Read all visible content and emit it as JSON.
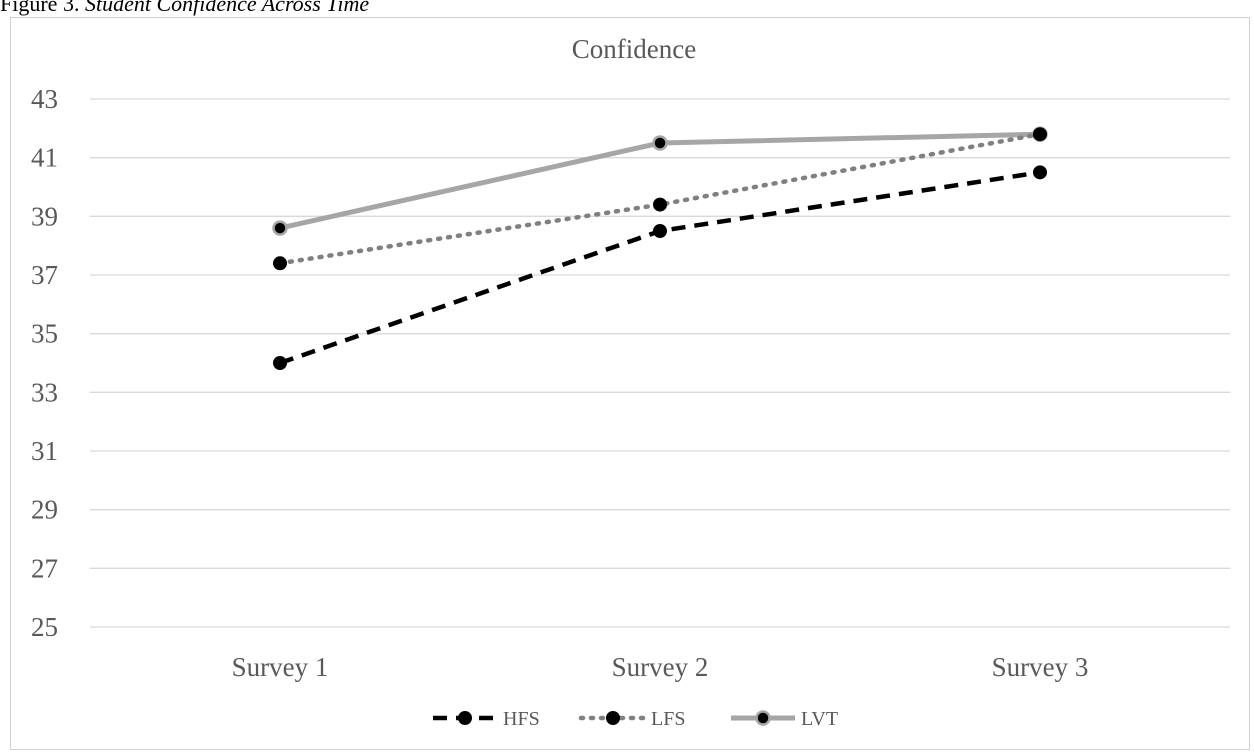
{
  "caption": {
    "prefix": "Figure 3.",
    "title": "Student Confidence Across Time"
  },
  "chart_data": {
    "type": "line",
    "title": "Confidence",
    "xlabel": "",
    "ylabel": "",
    "categories": [
      "Survey 1",
      "Survey 2",
      "Survey 3"
    ],
    "ylim": [
      25,
      43
    ],
    "yticks": [
      25,
      27,
      29,
      31,
      33,
      35,
      37,
      39,
      41,
      43
    ],
    "grid": true,
    "legend_position": "bottom",
    "series": [
      {
        "name": "HFS",
        "values": [
          34.0,
          38.5,
          40.5
        ],
        "color": "#000000",
        "style": "dashed"
      },
      {
        "name": "LFS",
        "values": [
          37.4,
          39.4,
          41.8
        ],
        "color": "#808080",
        "style": "dotted"
      },
      {
        "name": "LVT",
        "values": [
          38.6,
          41.5,
          41.8
        ],
        "color": "#a6a6a6",
        "style": "solid"
      }
    ]
  }
}
